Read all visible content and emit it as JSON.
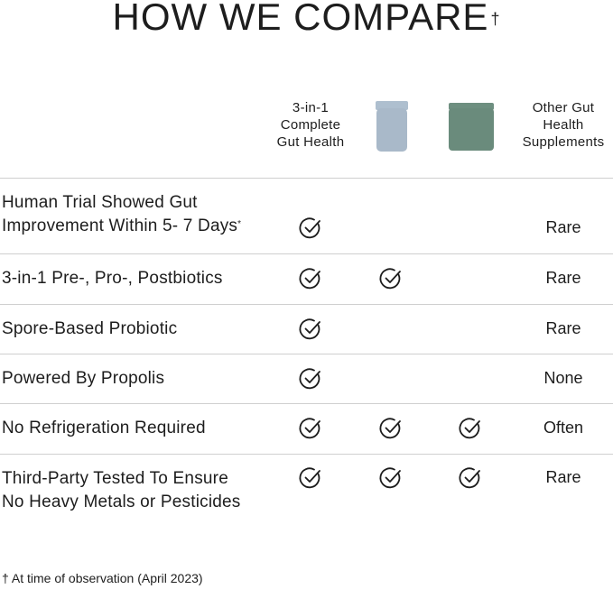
{
  "title": "HOW WE COMPARE",
  "title_mark": "†",
  "columns": {
    "product": [
      "3-in-1",
      "Complete",
      "Gut Health"
    ],
    "others": [
      "Other Gut",
      "Health",
      "Supplements"
    ]
  },
  "rows": [
    {
      "label": [
        "Human Trial Showed Gut",
        "Improvement Within 5- 7 Days"
      ],
      "note": "*",
      "checks": [
        true,
        false,
        false
      ],
      "others": "Rare"
    },
    {
      "label": [
        "3-in-1 Pre-, Pro-, Postbiotics"
      ],
      "checks": [
        true,
        true,
        false
      ],
      "others": "Rare"
    },
    {
      "label": [
        "Spore-Based Probiotic"
      ],
      "checks": [
        true,
        false,
        false
      ],
      "others": "Rare"
    },
    {
      "label": [
        "Powered By Propolis"
      ],
      "checks": [
        true,
        false,
        false
      ],
      "others": "None"
    },
    {
      "label": [
        "No Refrigeration Required"
      ],
      "checks": [
        true,
        true,
        true
      ],
      "others": "Often"
    },
    {
      "label": [
        "Third-Party Tested To Ensure",
        "No Heavy Metals or Pesticides"
      ],
      "checks": [
        true,
        true,
        true
      ],
      "others": "Rare"
    }
  ],
  "footnote": "† At time of observation (April 2023)"
}
